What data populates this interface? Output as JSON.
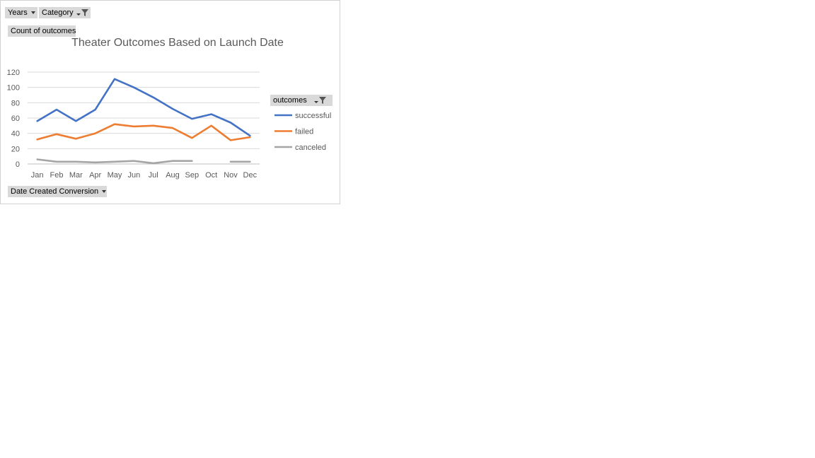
{
  "pivot": {
    "filter_years": "Years",
    "filter_category": "Category",
    "values_field": "Count of outcomes",
    "legend_field": "outcomes",
    "axis_field": "Date Created Conversion"
  },
  "chart_data": {
    "type": "line",
    "title": "Theater Outcomes Based on Launch Date",
    "xlabel": "",
    "ylabel": "",
    "categories": [
      "Jan",
      "Feb",
      "Mar",
      "Apr",
      "May",
      "Jun",
      "Jul",
      "Aug",
      "Sep",
      "Oct",
      "Nov",
      "Dec"
    ],
    "ylim": [
      0,
      120
    ],
    "yticks": [
      0,
      20,
      40,
      60,
      80,
      100,
      120
    ],
    "grid": true,
    "legend_position": "right",
    "series": [
      {
        "name": "successful",
        "color": "#4472C4",
        "values": [
          56,
          71,
          56,
          71,
          111,
          100,
          87,
          72,
          59,
          65,
          54,
          37
        ]
      },
      {
        "name": "failed",
        "color": "#ED7D31",
        "values": [
          32,
          39,
          33,
          40,
          52,
          49,
          50,
          47,
          34,
          50,
          31,
          35
        ]
      },
      {
        "name": "canceled",
        "color": "#A5A5A5",
        "values": [
          6,
          3,
          3,
          2,
          3,
          4,
          1,
          4,
          4,
          null,
          3,
          3
        ]
      }
    ]
  }
}
